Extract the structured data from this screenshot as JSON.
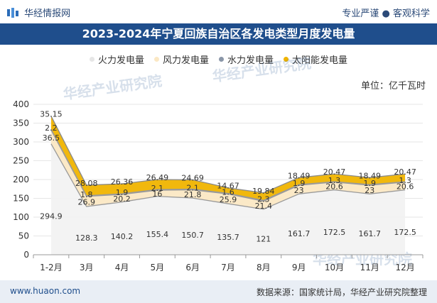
{
  "header": {
    "brand": "华经情报网",
    "tagline": "专业严谨 ● 客观科学"
  },
  "title": "2023-2024年宁夏回族自治区各发电类型月度发电量",
  "unit_label": "单位：亿千瓦时",
  "footer": {
    "site": "www.huaon.com",
    "source": "数据来源：国家统计局，华经产业研究院整理"
  },
  "chart_data": {
    "type": "area",
    "stacked": true,
    "title": "2023-2024年宁夏回族自治区各发电类型月度发电量",
    "ylabel": "单位：亿千瓦时",
    "ylim": [
      0,
      400
    ],
    "yticks": [
      0,
      50,
      100,
      150,
      200,
      250,
      300,
      350,
      400
    ],
    "legend_position": "top",
    "categories": [
      "1-2月",
      "3月",
      "4月",
      "5月",
      "6月",
      "7月",
      "8月",
      "9月",
      "10月",
      "11月",
      "12月"
    ],
    "series": [
      {
        "name": "火力发电量",
        "color": "#f2f2f2",
        "values": [
          294.9,
          128.3,
          140.2,
          155.4,
          150.7,
          135.7,
          121,
          161.7,
          172.5,
          161.7,
          172.5
        ]
      },
      {
        "name": "风力发电量",
        "color": "#fbe8c4",
        "values": [
          36.5,
          26.9,
          20.2,
          16,
          21.8,
          25.9,
          21.4,
          23,
          20.6,
          23,
          20.6
        ]
      },
      {
        "name": "水力发电量",
        "color": "#8a96a8",
        "values": [
          2.2,
          1.8,
          1.9,
          2.1,
          2.1,
          1.6,
          2.3,
          1.9,
          1.3,
          1.9,
          1.3
        ]
      },
      {
        "name": "太阳能发电量",
        "color": "#f0b400",
        "values": [
          35.15,
          28.08,
          26.36,
          26.49,
          24.69,
          14.67,
          19.84,
          18.49,
          20.47,
          18.49,
          20.47
        ]
      }
    ]
  }
}
